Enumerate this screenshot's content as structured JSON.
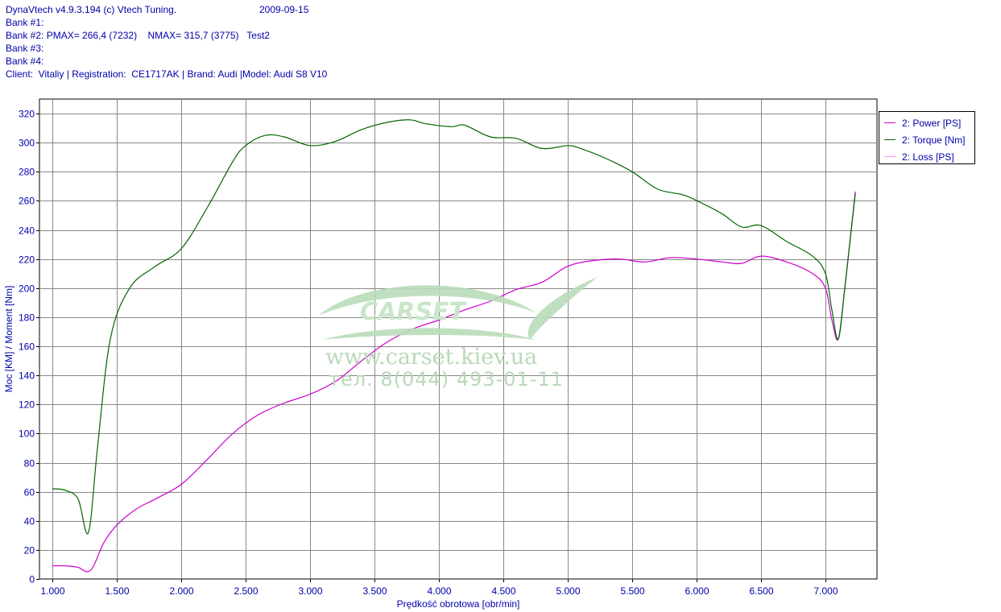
{
  "header": {
    "app_line": "DynaVtech v4.9.3.194 (c) Vtech Tuning.",
    "date": "2009-09-15",
    "bank1": "Bank #1:",
    "bank2": "Bank #2: PMAX= 266,4 (7232)    NMAX= 315,7 (3775)   Test2",
    "bank3": "Bank #3:",
    "bank4": "Bank #4:",
    "client": "Client:  Vitaliy | Registration:  CE1717AK | Brand: Audi |Model: Audi S8 V10"
  },
  "watermark": {
    "brand": "CARSET",
    "url": "www.carset.kiev.ua",
    "phone": "тел. 8(044) 493-01-11"
  },
  "colors": {
    "power": "#cc00cc",
    "torque": "#006600",
    "loss": "#ff88ff",
    "text": "#0000aa",
    "grid": "#888888"
  },
  "chart_data": {
    "type": "line",
    "xlabel": "Prędkość obrotowa [obr/min]",
    "ylabel": "Moc [KM] / Moment [Nm]",
    "xlim": [
      900,
      7400
    ],
    "ylim": [
      0,
      330
    ],
    "xticks": [
      1000,
      1500,
      2000,
      2500,
      3000,
      3500,
      4000,
      4500,
      5000,
      5500,
      6000,
      6500,
      7000
    ],
    "xtick_labels": [
      "1.000",
      "1.500",
      "2.000",
      "2.500",
      "3.000",
      "3.500",
      "4.000",
      "4.500",
      "5.000",
      "5.500",
      "6.000",
      "6.500",
      "7.000"
    ],
    "yticks": [
      0,
      20,
      40,
      60,
      80,
      100,
      120,
      140,
      160,
      180,
      200,
      220,
      240,
      260,
      280,
      300,
      320
    ],
    "grid": true,
    "legend_position": "top-right",
    "series": [
      {
        "name": "2: Power [PS]",
        "color": "#cc00cc",
        "x": [
          1000,
          1100,
          1200,
          1270,
          1320,
          1400,
          1500,
          1650,
          1800,
          2000,
          2200,
          2400,
          2600,
          2800,
          3000,
          3200,
          3400,
          3600,
          3800,
          4000,
          4200,
          4400,
          4600,
          4800,
          5000,
          5200,
          5400,
          5600,
          5800,
          6000,
          6200,
          6350,
          6500,
          6700,
          6900,
          7000,
          7050,
          7100,
          7150,
          7200,
          7232
        ],
        "y": [
          9,
          9,
          8,
          5,
          9,
          25,
          37,
          48,
          55,
          65,
          82,
          100,
          113,
          121,
          127,
          136,
          150,
          163,
          172,
          178,
          185,
          191,
          199,
          204,
          215,
          219,
          220,
          218,
          221,
          220,
          218,
          217,
          222,
          218,
          210,
          200,
          178,
          165,
          200,
          240,
          266.4
        ]
      },
      {
        "name": "2: Torque [Nm]",
        "color": "#006600",
        "x": [
          1000,
          1100,
          1200,
          1280,
          1350,
          1450,
          1600,
          1800,
          2000,
          2200,
          2400,
          2500,
          2650,
          2800,
          3000,
          3200,
          3400,
          3600,
          3775,
          3900,
          4100,
          4200,
          4400,
          4600,
          4800,
          5000,
          5100,
          5300,
          5500,
          5700,
          5900,
          6050,
          6200,
          6350,
          6500,
          6700,
          6900,
          7000,
          7050,
          7100,
          7150,
          7200,
          7232
        ],
        "y": [
          62,
          61,
          55,
          32,
          90,
          165,
          200,
          215,
          227,
          255,
          287,
          298,
          305,
          304,
          298,
          301,
          309,
          314,
          315.7,
          313,
          311,
          312,
          304,
          303,
          296,
          298,
          296,
          289,
          280,
          268,
          264,
          258,
          251,
          242,
          243,
          232,
          222,
          210,
          185,
          165,
          200,
          240,
          265
        ]
      },
      {
        "name": "2: Loss [PS]",
        "color": "#ff88ff",
        "x": [],
        "y": []
      }
    ]
  }
}
